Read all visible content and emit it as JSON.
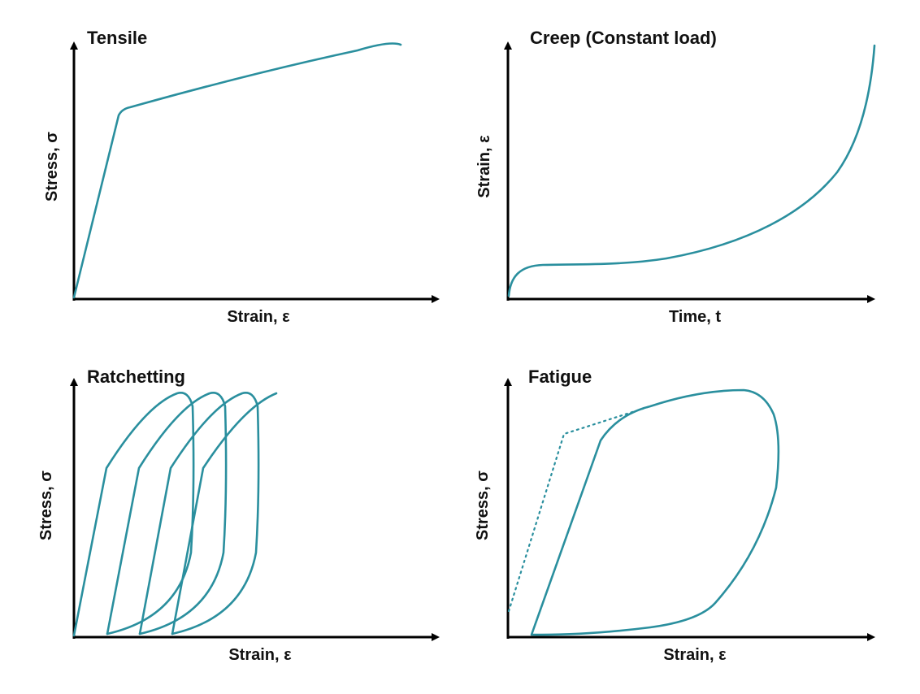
{
  "colors": {
    "curve": "#2A8F9E",
    "axis": "#000000",
    "text": "#111111"
  },
  "panels": {
    "tensile": {
      "title": "Tensile",
      "xlabel": "Strain, ε",
      "ylabel": "Stress, σ"
    },
    "creep": {
      "title": "Creep (Constant load)",
      "xlabel": "Time, t",
      "ylabel": "Strain, ε"
    },
    "ratchet": {
      "title": "Ratchetting",
      "xlabel": "Strain, ε",
      "ylabel": "Stress, σ"
    },
    "fatigue": {
      "title": "Fatigue",
      "xlabel": "Strain, ε",
      "ylabel": "Stress, σ"
    }
  }
}
